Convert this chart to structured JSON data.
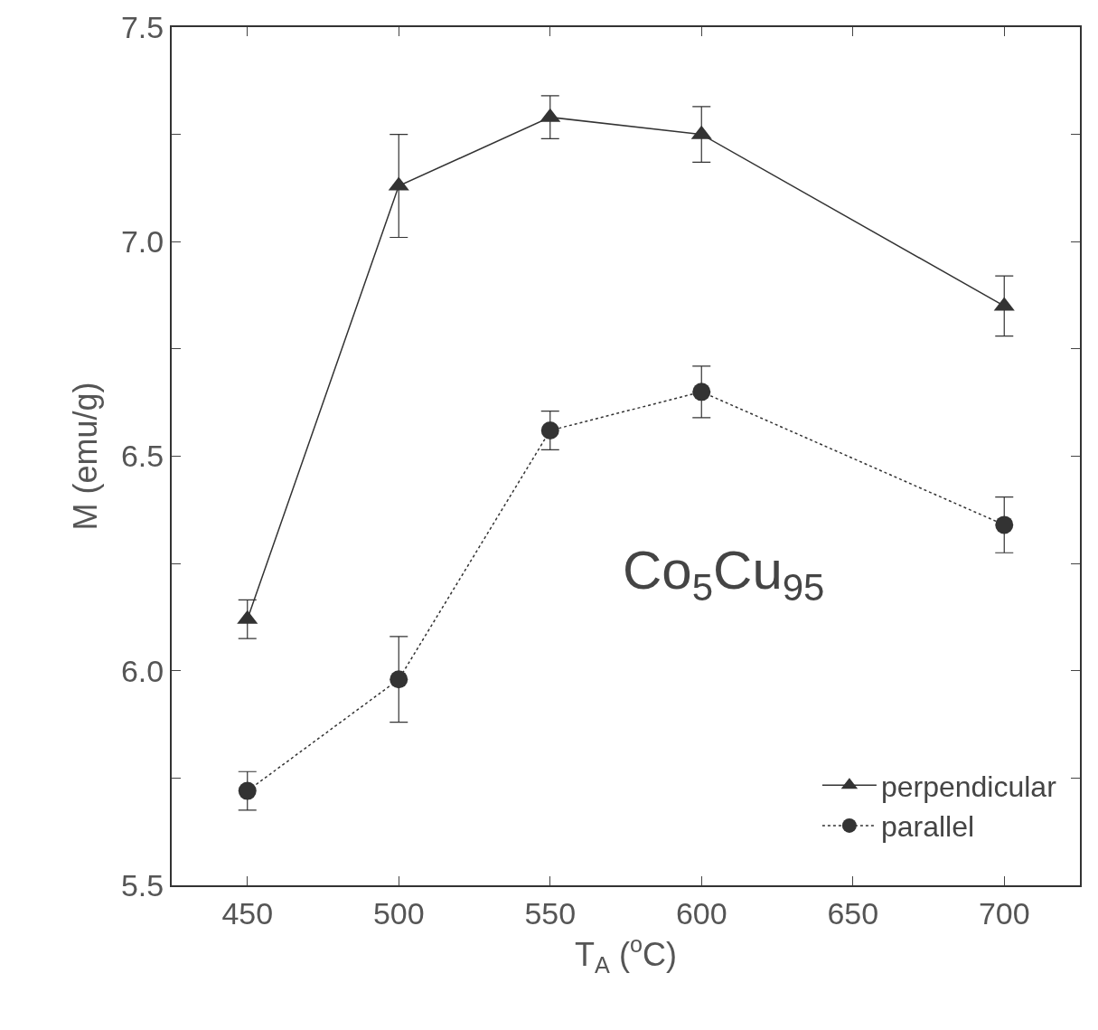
{
  "chart_data": {
    "type": "line",
    "xlabel": "T$_{A}$ ($^{o}$C)",
    "ylabel": "M (emu/g)",
    "x": [
      450,
      500,
      550,
      600,
      700
    ],
    "series": [
      {
        "name": "perpendicular",
        "color": "#333333",
        "marker": "triangle",
        "line_style": "solid",
        "values": [
          6.12,
          7.13,
          7.29,
          7.25,
          6.85
        ],
        "errors": [
          0.045,
          0.12,
          0.05,
          0.065,
          0.07
        ]
      },
      {
        "name": "parallel",
        "color": "#333333",
        "marker": "circle",
        "line_style": "dotted",
        "values": [
          5.72,
          5.98,
          6.56,
          6.65,
          6.34
        ],
        "errors": [
          0.045,
          0.1,
          0.045,
          0.06,
          0.065
        ]
      }
    ],
    "xlim": [
      425,
      725
    ],
    "xticks": [
      450,
      500,
      550,
      600,
      650,
      700
    ],
    "ylim": [
      5.5,
      7.5
    ],
    "yticks": [
      {
        "value": 5.5,
        "label": "5.5"
      },
      {
        "value": 5.75,
        "label": null
      },
      {
        "value": 6.0,
        "label": "6.0"
      },
      {
        "value": 6.25,
        "label": null
      },
      {
        "value": 6.5,
        "label": "6.5"
      },
      {
        "value": 6.75,
        "label": null
      },
      {
        "value": 7.0,
        "label": "7.0"
      },
      {
        "value": 7.25,
        "label": null
      },
      {
        "value": 7.5,
        "label": "7.5"
      }
    ],
    "annotations": [
      "Co$_{5}$Cu$_{95}$"
    ],
    "legend": "bottom right"
  }
}
